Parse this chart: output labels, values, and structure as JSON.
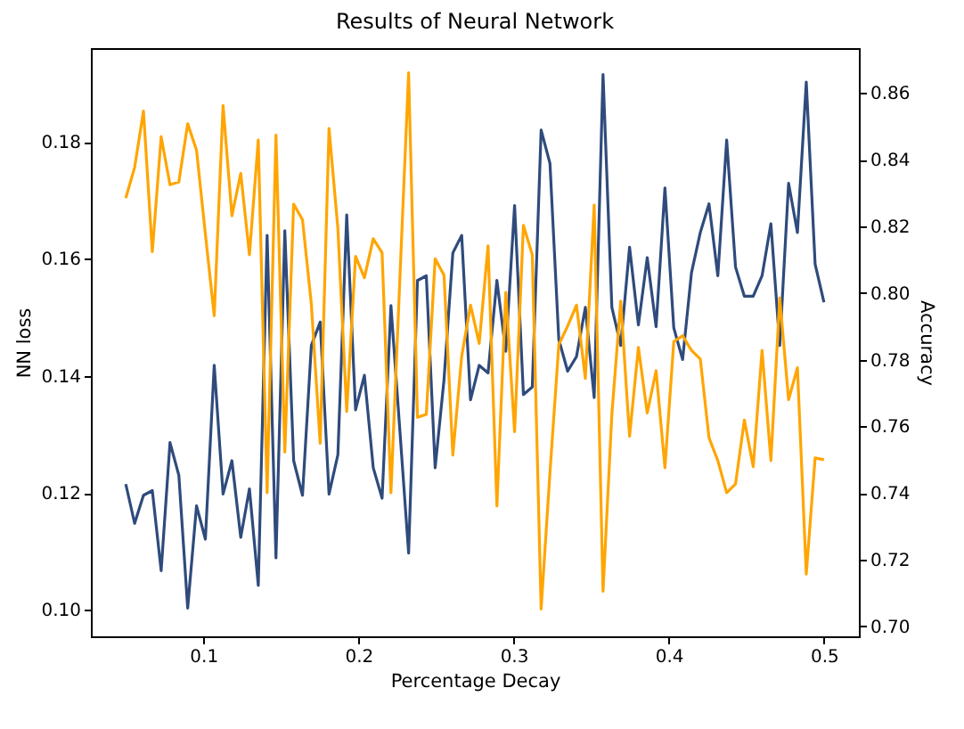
{
  "chart_data": {
    "type": "line",
    "title": "Results of Neural Network",
    "xlabel": "Percentage Decay",
    "ylabel": "NN loss",
    "y2label": "Accuracy",
    "x": [
      0.05,
      0.0557,
      0.0614,
      0.0671,
      0.0728,
      0.0785,
      0.0842,
      0.0899,
      0.0956,
      0.1013,
      0.107,
      0.1127,
      0.1184,
      0.1241,
      0.1297,
      0.1354,
      0.1411,
      0.1468,
      0.1525,
      0.1582,
      0.1639,
      0.1696,
      0.1753,
      0.181,
      0.1867,
      0.1924,
      0.1981,
      0.2038,
      0.2095,
      0.2152,
      0.2209,
      0.2266,
      0.2323,
      0.238,
      0.2437,
      0.2494,
      0.2551,
      0.2608,
      0.2665,
      0.2722,
      0.2778,
      0.2835,
      0.2892,
      0.2949,
      0.3006,
      0.3063,
      0.312,
      0.3177,
      0.3234,
      0.3291,
      0.3348,
      0.3405,
      0.3462,
      0.3519,
      0.3576,
      0.3633,
      0.369,
      0.3747,
      0.3804,
      0.3861,
      0.3918,
      0.3975,
      0.4032,
      0.4089,
      0.4146,
      0.4203,
      0.4259,
      0.4316,
      0.4373,
      0.443,
      0.4487,
      0.4544,
      0.4601,
      0.4658,
      0.4715,
      0.4772,
      0.4829,
      0.4886,
      0.4943,
      0.5
    ],
    "series": [
      {
        "color": "#2f4b7c",
        "values": [
          0.1215,
          0.1148,
          0.1196,
          0.1204,
          0.1067,
          0.1286,
          0.123,
          0.1003,
          0.1178,
          0.1121,
          0.1418,
          0.1198,
          0.1255,
          0.1124,
          0.1207,
          0.1042,
          0.164,
          0.1089,
          0.1648,
          0.1255,
          0.1196,
          0.1452,
          0.1492,
          0.1198,
          0.1265,
          0.1675,
          0.1342,
          0.1401,
          0.1243,
          0.1191,
          0.152,
          0.1309,
          0.1097,
          0.1563,
          0.1571,
          0.1243,
          0.1393,
          0.161,
          0.164,
          0.1359,
          0.1418,
          0.1405,
          0.1563,
          0.1442,
          0.1691,
          0.1368,
          0.1381,
          0.182,
          0.1763,
          0.1462,
          0.1408,
          0.1433,
          0.1517,
          0.1363,
          0.1915,
          0.1517,
          0.1452,
          0.162,
          0.1487,
          0.1602,
          0.1484,
          0.1721,
          0.1482,
          0.1428,
          0.1576,
          0.1645,
          0.1694,
          0.1571,
          0.1803,
          0.1586,
          0.1536,
          0.1536,
          0.1571,
          0.166,
          0.1452,
          0.1729,
          0.1645,
          0.1902,
          0.1591,
          0.1526
        ]
      },
      {
        "color": "#ffa500",
        "axis": "y2",
        "values": [
          0.8285,
          0.8377,
          0.8546,
          0.8124,
          0.8469,
          0.8325,
          0.8333,
          0.8508,
          0.8429,
          0.8177,
          0.7932,
          0.8563,
          0.8232,
          0.8359,
          0.8115,
          0.8459,
          0.7401,
          0.8474,
          0.7523,
          0.8267,
          0.822,
          0.7967,
          0.7549,
          0.8494,
          0.8194,
          0.7645,
          0.811,
          0.8046,
          0.8163,
          0.8121,
          0.7401,
          0.8037,
          0.8661,
          0.7627,
          0.7636,
          0.8103,
          0.8054,
          0.7514,
          0.781,
          0.7964,
          0.7849,
          0.8142,
          0.7361,
          0.8002,
          0.7584,
          0.8203,
          0.8115,
          0.7052,
          0.7462,
          0.7845,
          0.7901,
          0.7964,
          0.7744,
          0.8264,
          0.7105,
          0.7636,
          0.7976,
          0.757,
          0.7837,
          0.764,
          0.7767,
          0.7476,
          0.7854,
          0.7872,
          0.7828,
          0.7802,
          0.7566,
          0.7497,
          0.7401,
          0.7427,
          0.7619,
          0.7479,
          0.7828,
          0.7497,
          0.7985,
          0.768,
          0.7776,
          0.7157,
          0.7505,
          0.75
        ]
      }
    ],
    "xlim": [
      0.0275,
      0.5225
    ],
    "xticks": [
      0.1,
      0.2,
      0.3,
      0.4,
      0.5
    ],
    "ylim": [
      0.0955,
      0.196
    ],
    "yticks": [
      {
        "value": 0.1,
        "label": "0.10"
      },
      {
        "value": 0.12,
        "label": "0.12"
      },
      {
        "value": 0.14,
        "label": "0.14"
      },
      {
        "value": 0.16,
        "label": "0.16"
      },
      {
        "value": 0.18,
        "label": "0.18"
      }
    ],
    "y2lim": [
      0.697,
      0.8735
    ],
    "y2ticks": [
      {
        "value": 0.7,
        "label": "0.70"
      },
      {
        "value": 0.72,
        "label": "0.72"
      },
      {
        "value": 0.74,
        "label": "0.74"
      },
      {
        "value": 0.76,
        "label": "0.76"
      },
      {
        "value": 0.78,
        "label": "0.78"
      },
      {
        "value": 0.8,
        "label": "0.80"
      },
      {
        "value": 0.82,
        "label": "0.82"
      },
      {
        "value": 0.84,
        "label": "0.84"
      },
      {
        "value": 0.86,
        "label": "0.86"
      }
    ]
  }
}
